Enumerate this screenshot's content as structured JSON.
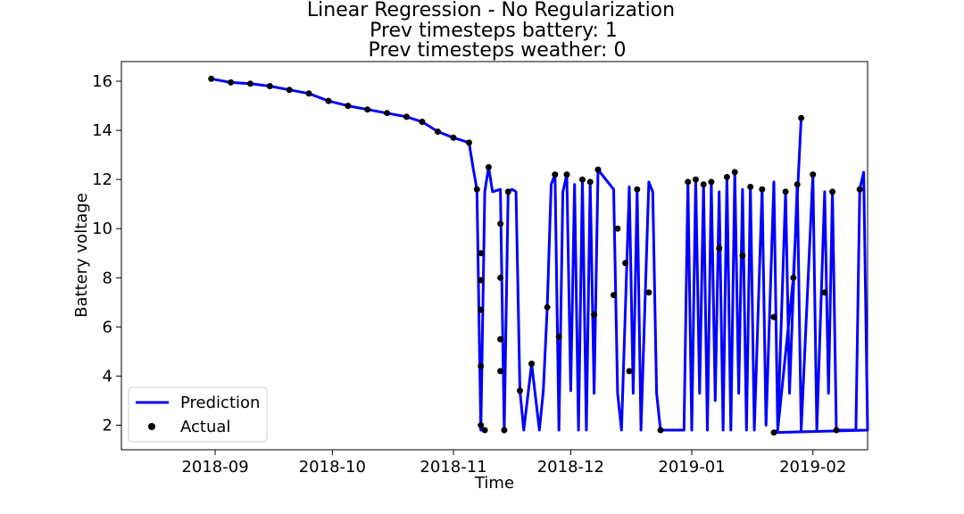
{
  "chart_data": {
    "type": "line",
    "title": [
      "Linear Regression - No Regularization",
      "Prev timesteps battery: 1",
      "Prev timesteps weather: 0"
    ],
    "xlabel": "Time",
    "ylabel": "Battery voltage",
    "x_is_date": true,
    "xlim": [
      "2018-08-08",
      "2019-02-15"
    ],
    "ylim": [
      1.0,
      16.8
    ],
    "xticks": [
      "2018-09-01",
      "2018-10-01",
      "2018-11-01",
      "2018-12-01",
      "2019-01-01",
      "2019-02-01"
    ],
    "xtick_labels": [
      "2018-09",
      "2018-10",
      "2018-11",
      "2018-12",
      "2019-01",
      "2019-02"
    ],
    "yticks": [
      2,
      4,
      6,
      8,
      10,
      12,
      14,
      16
    ],
    "ytick_labels": [
      "2",
      "4",
      "6",
      "8",
      "10",
      "12",
      "14",
      "16"
    ],
    "grid": false,
    "legend_position": "lower-left",
    "series": [
      {
        "name": "Prediction",
        "kind": "line",
        "color": "#0000ff",
        "points": [
          [
            "2018-08-31",
            16.1
          ],
          [
            "2018-09-05",
            15.95
          ],
          [
            "2018-09-10",
            15.9
          ],
          [
            "2018-09-15",
            15.8
          ],
          [
            "2018-09-20",
            15.65
          ],
          [
            "2018-09-25",
            15.5
          ],
          [
            "2018-09-30",
            15.2
          ],
          [
            "2018-10-05",
            15.0
          ],
          [
            "2018-10-10",
            14.85
          ],
          [
            "2018-10-15",
            14.7
          ],
          [
            "2018-10-20",
            14.55
          ],
          [
            "2018-10-24",
            14.35
          ],
          [
            "2018-10-28",
            13.95
          ],
          [
            "2018-11-01",
            13.7
          ],
          [
            "2018-11-03",
            13.6
          ],
          [
            "2018-11-05",
            13.5
          ],
          [
            "2018-11-06",
            12.5
          ],
          [
            "2018-11-07",
            11.6
          ],
          [
            "2018-11-08",
            1.8
          ],
          [
            "2018-11-09",
            11.5
          ],
          [
            "2018-11-10",
            12.5
          ],
          [
            "2018-11-11",
            11.5
          ],
          [
            "2018-11-13",
            11.6
          ],
          [
            "2018-11-14",
            1.8
          ],
          [
            "2018-11-15",
            11.5
          ],
          [
            "2018-11-16",
            11.6
          ],
          [
            "2018-11-17",
            11.5
          ],
          [
            "2018-11-18",
            3.4
          ],
          [
            "2018-11-19",
            1.8
          ],
          [
            "2018-11-21",
            4.5
          ],
          [
            "2018-11-23",
            1.8
          ],
          [
            "2018-11-24",
            3.4
          ],
          [
            "2018-11-25",
            6.8
          ],
          [
            "2018-11-26",
            11.8
          ],
          [
            "2018-11-27",
            12.2
          ],
          [
            "2018-11-28",
            1.8
          ],
          [
            "2018-11-29",
            11.5
          ],
          [
            "2018-11-30",
            12.2
          ],
          [
            "2018-12-01",
            3.4
          ],
          [
            "2018-12-02",
            11.8
          ],
          [
            "2018-12-03",
            1.8
          ],
          [
            "2018-12-04",
            12.0
          ],
          [
            "2018-12-05",
            1.8
          ],
          [
            "2018-12-06",
            11.9
          ],
          [
            "2018-12-07",
            3.3
          ],
          [
            "2018-12-08",
            12.4
          ],
          [
            "2018-12-10",
            12.0
          ],
          [
            "2018-12-12",
            11.6
          ],
          [
            "2018-12-13",
            3.3
          ],
          [
            "2018-12-14",
            1.8
          ],
          [
            "2018-12-16",
            11.7
          ],
          [
            "2018-12-17",
            3.3
          ],
          [
            "2018-12-18",
            11.6
          ],
          [
            "2018-12-19",
            1.8
          ],
          [
            "2018-12-21",
            11.9
          ],
          [
            "2018-12-22",
            11.5
          ],
          [
            "2018-12-23",
            3.3
          ],
          [
            "2018-12-24",
            1.8
          ],
          [
            "2018-12-30",
            1.8
          ],
          [
            "2018-12-31",
            11.9
          ],
          [
            "2019-01-01",
            1.8
          ],
          [
            "2019-01-02",
            12.0
          ],
          [
            "2019-01-03",
            3.3
          ],
          [
            "2019-01-04",
            11.8
          ],
          [
            "2019-01-05",
            1.8
          ],
          [
            "2019-01-06",
            11.9
          ],
          [
            "2019-01-07",
            3.0
          ],
          [
            "2019-01-08",
            11.5
          ],
          [
            "2019-01-09",
            1.8
          ],
          [
            "2019-01-10",
            12.1
          ],
          [
            "2019-01-11",
            1.8
          ],
          [
            "2019-01-12",
            12.3
          ],
          [
            "2019-01-13",
            3.3
          ],
          [
            "2019-01-14",
            11.6
          ],
          [
            "2019-01-15",
            1.8
          ],
          [
            "2019-01-16",
            11.7
          ],
          [
            "2019-01-17",
            1.8
          ],
          [
            "2019-01-19",
            11.6
          ],
          [
            "2019-01-20",
            2.0
          ],
          [
            "2019-01-22",
            11.9
          ],
          [
            "2019-01-23",
            1.8
          ],
          [
            "2019-01-25",
            11.5
          ],
          [
            "2019-01-26",
            3.3
          ],
          [
            "2019-01-28",
            11.8
          ],
          [
            "2019-01-29",
            1.8
          ],
          [
            "2019-02-01",
            12.2
          ],
          [
            "2019-02-02",
            1.8
          ],
          [
            "2019-02-04",
            11.5
          ],
          [
            "2019-02-05",
            3.3
          ],
          [
            "2019-02-06",
            11.5
          ],
          [
            "2019-02-07",
            1.8
          ],
          [
            "2019-02-10",
            1.8
          ],
          [
            "2019-02-12",
            1.8
          ],
          [
            "2019-02-13",
            11.6
          ],
          [
            "2019-02-14",
            12.3
          ],
          [
            "2019-02-15",
            1.8
          ],
          [
            "2019-01-22",
            1.7
          ],
          [
            "2019-01-23",
            1.8
          ],
          [
            "2019-01-27",
            8.0
          ],
          [
            "2019-01-29",
            14.5
          ]
        ]
      },
      {
        "name": "Actual",
        "kind": "scatter",
        "color": "#000000",
        "points": [
          [
            "2018-08-31",
            16.1
          ],
          [
            "2018-09-05",
            15.95
          ],
          [
            "2018-09-10",
            15.9
          ],
          [
            "2018-09-15",
            15.8
          ],
          [
            "2018-09-20",
            15.65
          ],
          [
            "2018-09-25",
            15.5
          ],
          [
            "2018-09-30",
            15.2
          ],
          [
            "2018-10-05",
            15.0
          ],
          [
            "2018-10-10",
            14.85
          ],
          [
            "2018-10-15",
            14.7
          ],
          [
            "2018-10-20",
            14.55
          ],
          [
            "2018-10-24",
            14.35
          ],
          [
            "2018-10-28",
            13.95
          ],
          [
            "2018-11-01",
            13.7
          ],
          [
            "2018-11-05",
            13.5
          ],
          [
            "2018-11-07",
            11.6
          ],
          [
            "2018-11-08",
            9.0
          ],
          [
            "2018-11-08",
            7.9
          ],
          [
            "2018-11-08",
            6.7
          ],
          [
            "2018-11-08",
            4.4
          ],
          [
            "2018-11-08",
            2.0
          ],
          [
            "2018-11-09",
            1.8
          ],
          [
            "2018-11-10",
            12.5
          ],
          [
            "2018-11-13",
            10.2
          ],
          [
            "2018-11-13",
            8.0
          ],
          [
            "2018-11-13",
            5.5
          ],
          [
            "2018-11-13",
            4.2
          ],
          [
            "2018-11-14",
            1.8
          ],
          [
            "2018-11-15",
            11.5
          ],
          [
            "2018-11-18",
            3.4
          ],
          [
            "2018-11-21",
            4.5
          ],
          [
            "2018-11-25",
            6.8
          ],
          [
            "2018-11-27",
            12.2
          ],
          [
            "2018-11-28",
            5.6
          ],
          [
            "2018-11-30",
            12.2
          ],
          [
            "2018-12-04",
            12.0
          ],
          [
            "2018-12-06",
            11.9
          ],
          [
            "2018-12-07",
            6.5
          ],
          [
            "2018-12-08",
            12.4
          ],
          [
            "2018-12-12",
            7.3
          ],
          [
            "2018-12-13",
            10.0
          ],
          [
            "2018-12-15",
            8.6
          ],
          [
            "2018-12-16",
            4.2
          ],
          [
            "2018-12-18",
            11.6
          ],
          [
            "2018-12-21",
            7.4
          ],
          [
            "2018-12-24",
            1.8
          ],
          [
            "2018-12-31",
            11.9
          ],
          [
            "2019-01-02",
            12.0
          ],
          [
            "2019-01-04",
            11.8
          ],
          [
            "2019-01-06",
            11.9
          ],
          [
            "2019-01-08",
            9.2
          ],
          [
            "2019-01-10",
            12.1
          ],
          [
            "2019-01-12",
            12.3
          ],
          [
            "2019-01-14",
            8.9
          ],
          [
            "2019-01-16",
            11.7
          ],
          [
            "2019-01-19",
            11.6
          ],
          [
            "2019-01-22",
            6.4
          ],
          [
            "2019-01-25",
            11.5
          ],
          [
            "2019-01-28",
            11.8
          ],
          [
            "2019-02-01",
            12.2
          ],
          [
            "2019-02-04",
            7.4
          ],
          [
            "2019-02-06",
            11.5
          ],
          [
            "2019-02-07",
            1.8
          ],
          [
            "2019-02-13",
            11.6
          ],
          [
            "2019-01-22",
            1.7
          ],
          [
            "2019-01-27",
            8.0
          ],
          [
            "2019-01-29",
            14.5
          ]
        ]
      }
    ]
  }
}
